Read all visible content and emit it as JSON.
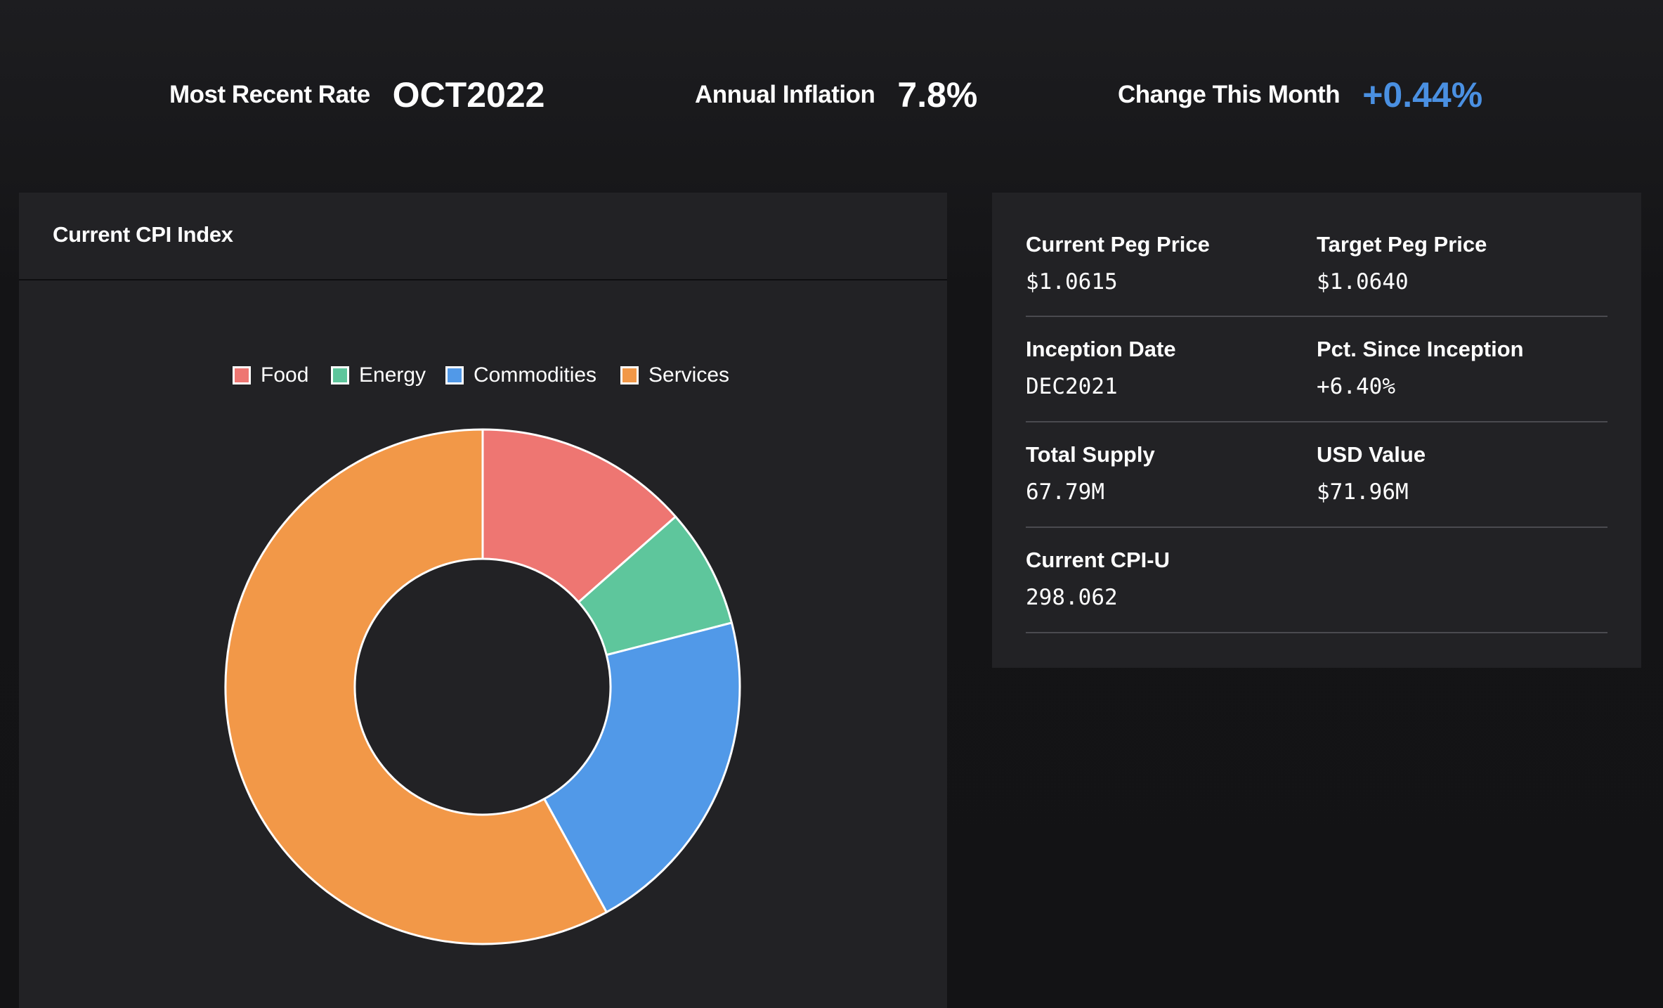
{
  "stats": {
    "recent_rate_label": "Most Recent Rate",
    "recent_rate_value": "OCT2022",
    "annual_inflation_label": "Annual Inflation",
    "annual_inflation_value": "7.8%",
    "change_month_label": "Change This Month",
    "change_month_value": "+0.44%"
  },
  "cpi_panel": {
    "title": "Current CPI Index"
  },
  "chart_data": {
    "type": "pie",
    "donut": true,
    "legend_position": "top",
    "categories": [
      "Food",
      "Energy",
      "Commodities",
      "Services"
    ],
    "values": [
      13.5,
      7.5,
      21.0,
      58.0
    ],
    "colors": [
      "#ee7672",
      "#5ec69c",
      "#5199e8",
      "#f29848"
    ],
    "start_angle_deg": 0,
    "direction": "clockwise"
  },
  "info_card": {
    "current_peg_price": {
      "label": "Current Peg Price",
      "value": "$1.0615"
    },
    "target_peg_price": {
      "label": "Target Peg Price",
      "value": "$1.0640"
    },
    "inception_date": {
      "label": "Inception Date",
      "value": "DEC2021"
    },
    "pct_since_inception": {
      "label": "Pct. Since Inception",
      "value": "+6.40%"
    },
    "total_supply": {
      "label": "Total Supply",
      "value": "67.79M"
    },
    "usd_value": {
      "label": "USD Value",
      "value": "$71.96M"
    },
    "current_cpi_u": {
      "label": "Current CPI-U",
      "value": "298.062"
    }
  },
  "colors": {
    "accent": "#4a90e2",
    "panel": "#222225",
    "background": "#141416"
  }
}
